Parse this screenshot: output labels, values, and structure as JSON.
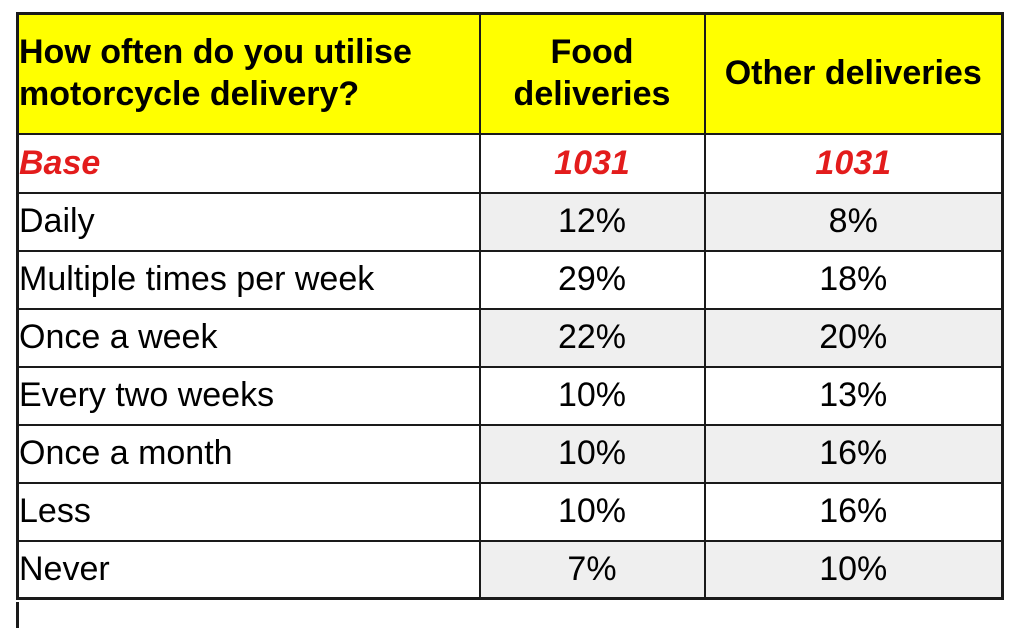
{
  "table": {
    "header": {
      "question": "How often do you utilise motorcycle delivery?",
      "col_food": "Food deliveries",
      "col_other": "Other deliveries"
    },
    "base_row": {
      "label": "Base",
      "food": "1031",
      "other": "1031"
    },
    "rows": [
      {
        "label": "Daily",
        "food": "12%",
        "other": "8%"
      },
      {
        "label": "Multiple times per week",
        "food": "29%",
        "other": "18%"
      },
      {
        "label": "Once a week",
        "food": "22%",
        "other": "20%"
      },
      {
        "label": "Every two weeks",
        "food": "10%",
        "other": "13%"
      },
      {
        "label": "Once a month",
        "food": "10%",
        "other": "16%"
      },
      {
        "label": "Less",
        "food": "10%",
        "other": "16%"
      },
      {
        "label": "Never",
        "food": "7%",
        "other": "10%"
      }
    ]
  },
  "colors": {
    "header_bg": "#ffff00",
    "base_red": "#e31c1c",
    "shade": "#efefef",
    "border": "#1a1a1a"
  },
  "chart_data": {
    "type": "table",
    "title": "How often do you utilise motorcycle delivery?",
    "columns": [
      "Food deliveries",
      "Other deliveries"
    ],
    "base": {
      "label": "Base",
      "values": [
        1031,
        1031
      ]
    },
    "categories": [
      "Daily",
      "Multiple times per week",
      "Once a week",
      "Every two weeks",
      "Once a month",
      "Less",
      "Never"
    ],
    "series": [
      {
        "name": "Food deliveries",
        "values": [
          "12%",
          "29%",
          "22%",
          "10%",
          "10%",
          "10%",
          "7%"
        ]
      },
      {
        "name": "Other deliveries",
        "values": [
          "8%",
          "18%",
          "20%",
          "13%",
          "16%",
          "16%",
          "10%"
        ]
      }
    ],
    "layout_hints": {
      "header_background": "#ffff00",
      "base_row_style": "red bold italic",
      "value_cells_alternating_shade": "#efefef starting at Daily row",
      "label_column_background": "white"
    }
  }
}
